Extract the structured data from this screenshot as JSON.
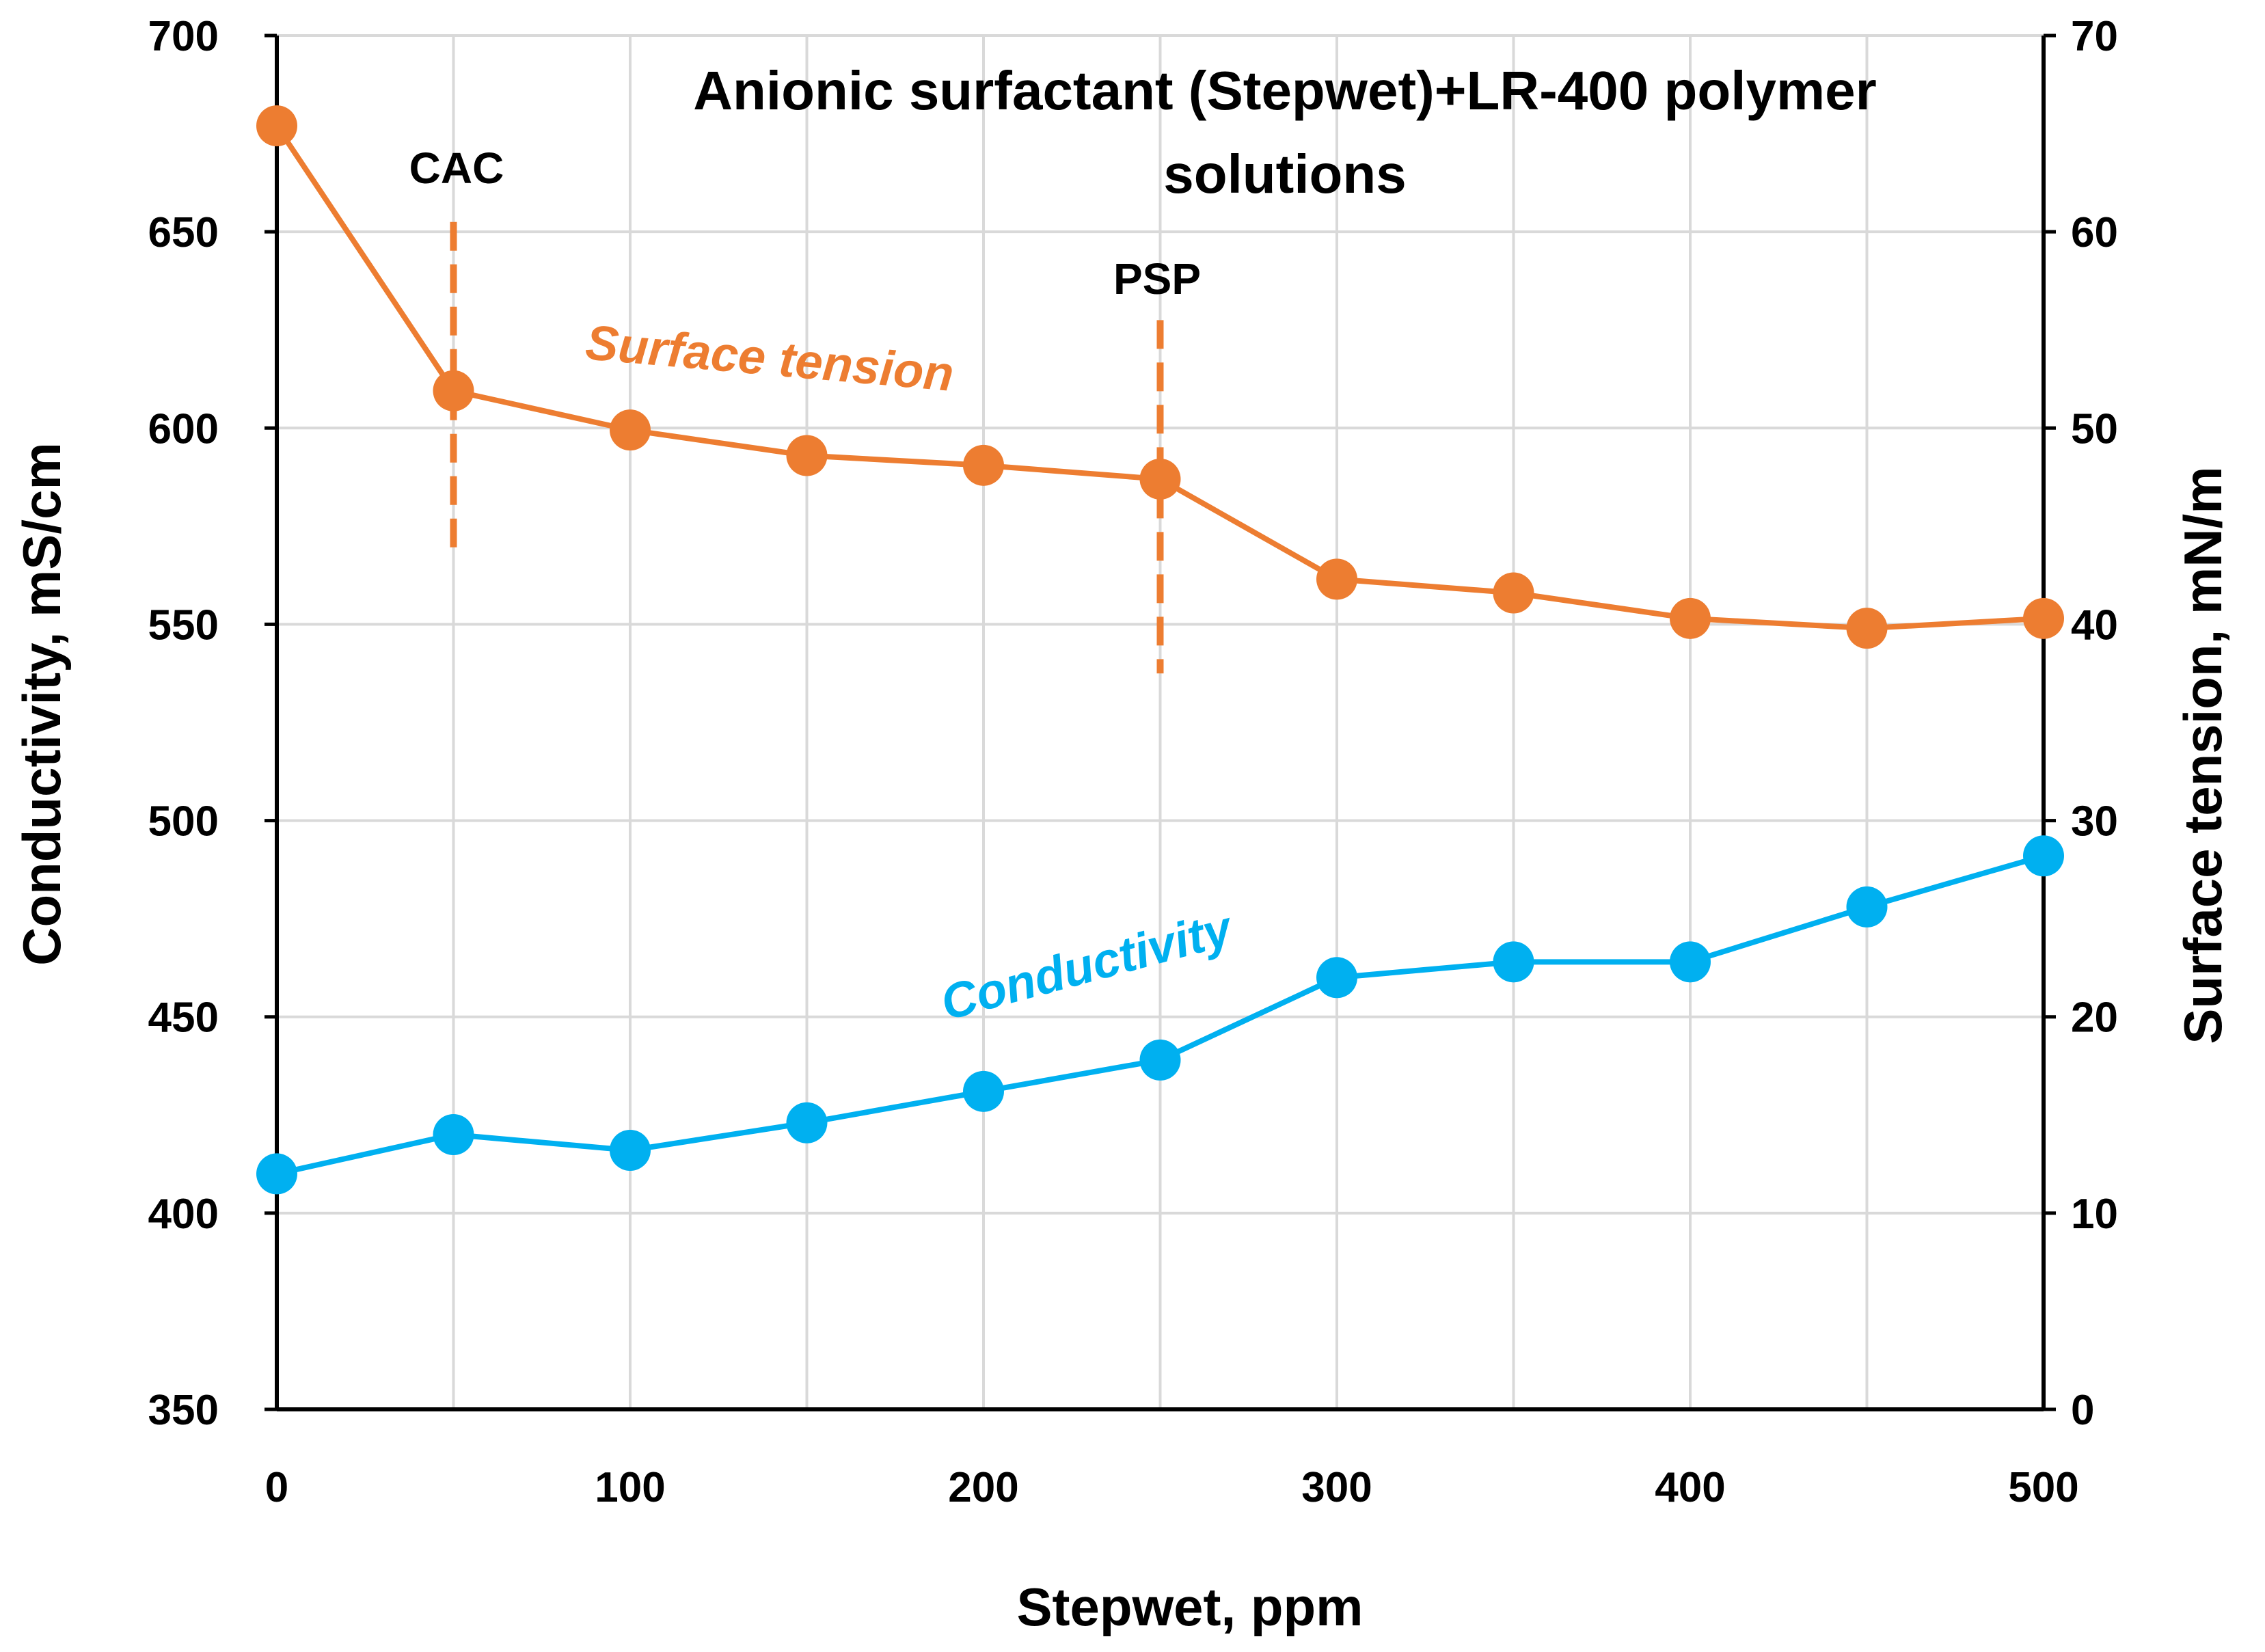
{
  "chart_data": {
    "type": "line",
    "title_lines": [
      "Anionic surfactant (Stepwet)+LR-400 polymer",
      "solutions"
    ],
    "xlabel": "Stepwet, ppm",
    "ylabel": "Conductivity, mS/cm",
    "y2label": "Surface tension, mN/m",
    "xlim": [
      0,
      500
    ],
    "ylim": [
      350,
      700
    ],
    "y2lim": [
      0,
      70
    ],
    "x_ticks": [
      0,
      100,
      200,
      300,
      400,
      500
    ],
    "y_ticks": [
      350,
      400,
      450,
      500,
      550,
      600,
      650,
      700
    ],
    "y2_ticks": [
      0,
      10,
      20,
      30,
      40,
      50,
      60,
      70
    ],
    "x_gridlines": [
      0,
      50,
      100,
      150,
      200,
      250,
      300,
      350,
      400,
      450,
      500
    ],
    "grid": true,
    "series": [
      {
        "name": "Surface tension",
        "axis": "right",
        "color": "#ED7D31",
        "x": [
          0,
          50,
          100,
          150,
          200,
          250,
          300,
          350,
          400,
          450,
          500
        ],
        "values": [
          65.4,
          51.9,
          49.9,
          48.6,
          48.1,
          47.4,
          42.3,
          41.6,
          40.3,
          39.8,
          40.3
        ]
      },
      {
        "name": "Conductivity",
        "axis": "left",
        "color": "#00B0F0",
        "x": [
          0,
          50,
          100,
          150,
          200,
          250,
          300,
          350,
          400,
          450,
          500
        ],
        "values": [
          410,
          420,
          416,
          423,
          431,
          439,
          460,
          464,
          464,
          478,
          491
        ]
      }
    ],
    "annotations": [
      {
        "text": "CAC",
        "x": 50,
        "y2_range": [
          43.5,
          60.5
        ],
        "color": "#ED7D31"
      },
      {
        "text": "PSP",
        "x": 250,
        "y2_range": [
          37.5,
          55.5
        ],
        "color": "#ED7D31"
      }
    ],
    "series_labels": [
      {
        "text": "Surface tension",
        "color": "#ED7D31"
      },
      {
        "text": "Conductivity",
        "color": "#00B0F0"
      }
    ]
  }
}
